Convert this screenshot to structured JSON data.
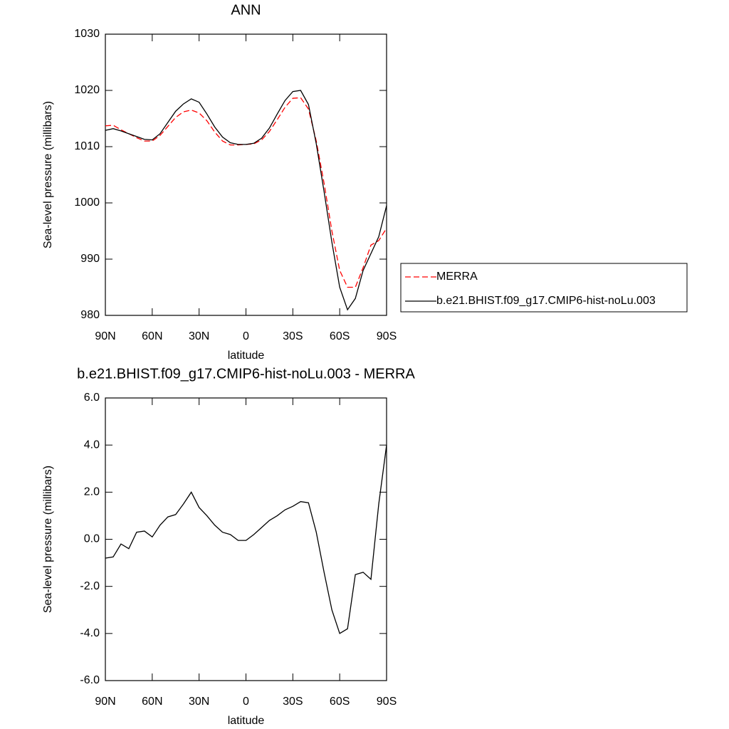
{
  "chart_data": [
    {
      "type": "line",
      "title": "ANN",
      "xlabel": "latitude",
      "ylabel": "Sea-level pressure (millibars)",
      "x": [
        90,
        85,
        80,
        75,
        70,
        65,
        60,
        55,
        50,
        45,
        40,
        35,
        30,
        25,
        20,
        15,
        10,
        5,
        0,
        -5,
        -10,
        -15,
        -20,
        -25,
        -30,
        -35,
        -40,
        -45,
        -50,
        -55,
        -60,
        -65,
        -70,
        -75,
        -80,
        -85,
        -90
      ],
      "xlim": [
        90,
        -90
      ],
      "xticks": [
        {
          "value": 90,
          "label": "90N"
        },
        {
          "value": 60,
          "label": "60N"
        },
        {
          "value": 30,
          "label": "30N"
        },
        0,
        {
          "value": -30,
          "label": "30S"
        },
        {
          "value": -60,
          "label": "60S"
        },
        {
          "value": -90,
          "label": "90S"
        }
      ],
      "ylim": [
        980,
        1030
      ],
      "yticks": [
        980,
        990,
        1000,
        1010,
        1020,
        1030
      ],
      "legend": "right",
      "series": [
        {
          "name": "MERRA",
          "color": "#ff0000",
          "dash": true,
          "values": [
            1013.7,
            1013.8,
            1013.0,
            1012.3,
            1011.6,
            1011.0,
            1011.0,
            1012.0,
            1013.6,
            1015.2,
            1016.2,
            1016.5,
            1016.0,
            1014.6,
            1012.6,
            1011.0,
            1010.3,
            1010.3,
            1010.4,
            1010.5,
            1011.2,
            1012.7,
            1014.8,
            1017.0,
            1018.6,
            1018.7,
            1016.7,
            1011.0,
            1003.5,
            995.0,
            988.0,
            985.0,
            985.0,
            988.5,
            992.5,
            993.3,
            995.5
          ]
        },
        {
          "name": "b.e21.BHIST.f09_g17.CMIP6-hist-noLu.003",
          "color": "#000000",
          "dash": false,
          "values": [
            1012.9,
            1013.2,
            1012.8,
            1012.3,
            1011.8,
            1011.3,
            1011.2,
            1012.3,
            1014.3,
            1016.3,
            1017.6,
            1018.5,
            1017.9,
            1015.8,
            1013.5,
            1011.7,
            1010.7,
            1010.4,
            1010.4,
            1010.6,
            1011.5,
            1013.3,
            1015.8,
            1018.2,
            1019.8,
            1020.0,
            1017.5,
            1010.5,
            1002.0,
            993.0,
            985.0,
            981.0,
            983.0,
            988.0,
            991.0,
            994.0,
            999.5
          ]
        }
      ]
    },
    {
      "type": "line",
      "title": "b.e21.BHIST.f09_g17.CMIP6-hist-noLu.003 - MERRA",
      "xlabel": "latitude",
      "ylabel": "Sea-level pressure (millibars)",
      "x": [
        90,
        85,
        80,
        75,
        70,
        65,
        60,
        55,
        50,
        45,
        40,
        35,
        30,
        25,
        20,
        15,
        10,
        5,
        0,
        -5,
        -10,
        -15,
        -20,
        -25,
        -30,
        -35,
        -40,
        -45,
        -50,
        -55,
        -60,
        -65,
        -70,
        -75,
        -80,
        -85,
        -90
      ],
      "xlim": [
        90,
        -90
      ],
      "xticks": [
        {
          "value": 90,
          "label": "90N"
        },
        {
          "value": 60,
          "label": "60N"
        },
        {
          "value": 30,
          "label": "30N"
        },
        0,
        {
          "value": -30,
          "label": "30S"
        },
        {
          "value": -60,
          "label": "60S"
        },
        {
          "value": -90,
          "label": "90S"
        }
      ],
      "ylim": [
        -6,
        6
      ],
      "yticks": [
        {
          "value": -6,
          "label": "-6.0"
        },
        {
          "value": -4,
          "label": "-4.0"
        },
        {
          "value": -2,
          "label": "-2.0"
        },
        {
          "value": 0,
          "label": "0.0"
        },
        {
          "value": 2,
          "label": "2.0"
        },
        {
          "value": 4,
          "label": "4.0"
        },
        {
          "value": 6,
          "label": "6.0"
        }
      ],
      "series": [
        {
          "color": "#000000",
          "dash": false,
          "values": [
            -0.8,
            -0.75,
            -0.2,
            -0.4,
            0.3,
            0.35,
            0.1,
            0.6,
            0.95,
            1.05,
            1.5,
            2.0,
            1.35,
            1.0,
            0.6,
            0.3,
            0.2,
            -0.05,
            -0.05,
            0.2,
            0.5,
            0.8,
            1.0,
            1.25,
            1.4,
            1.6,
            1.55,
            0.3,
            -1.4,
            -3.0,
            -4.0,
            -3.8,
            -1.5,
            -1.4,
            -1.7,
            1.5,
            4.0
          ]
        }
      ]
    }
  ]
}
